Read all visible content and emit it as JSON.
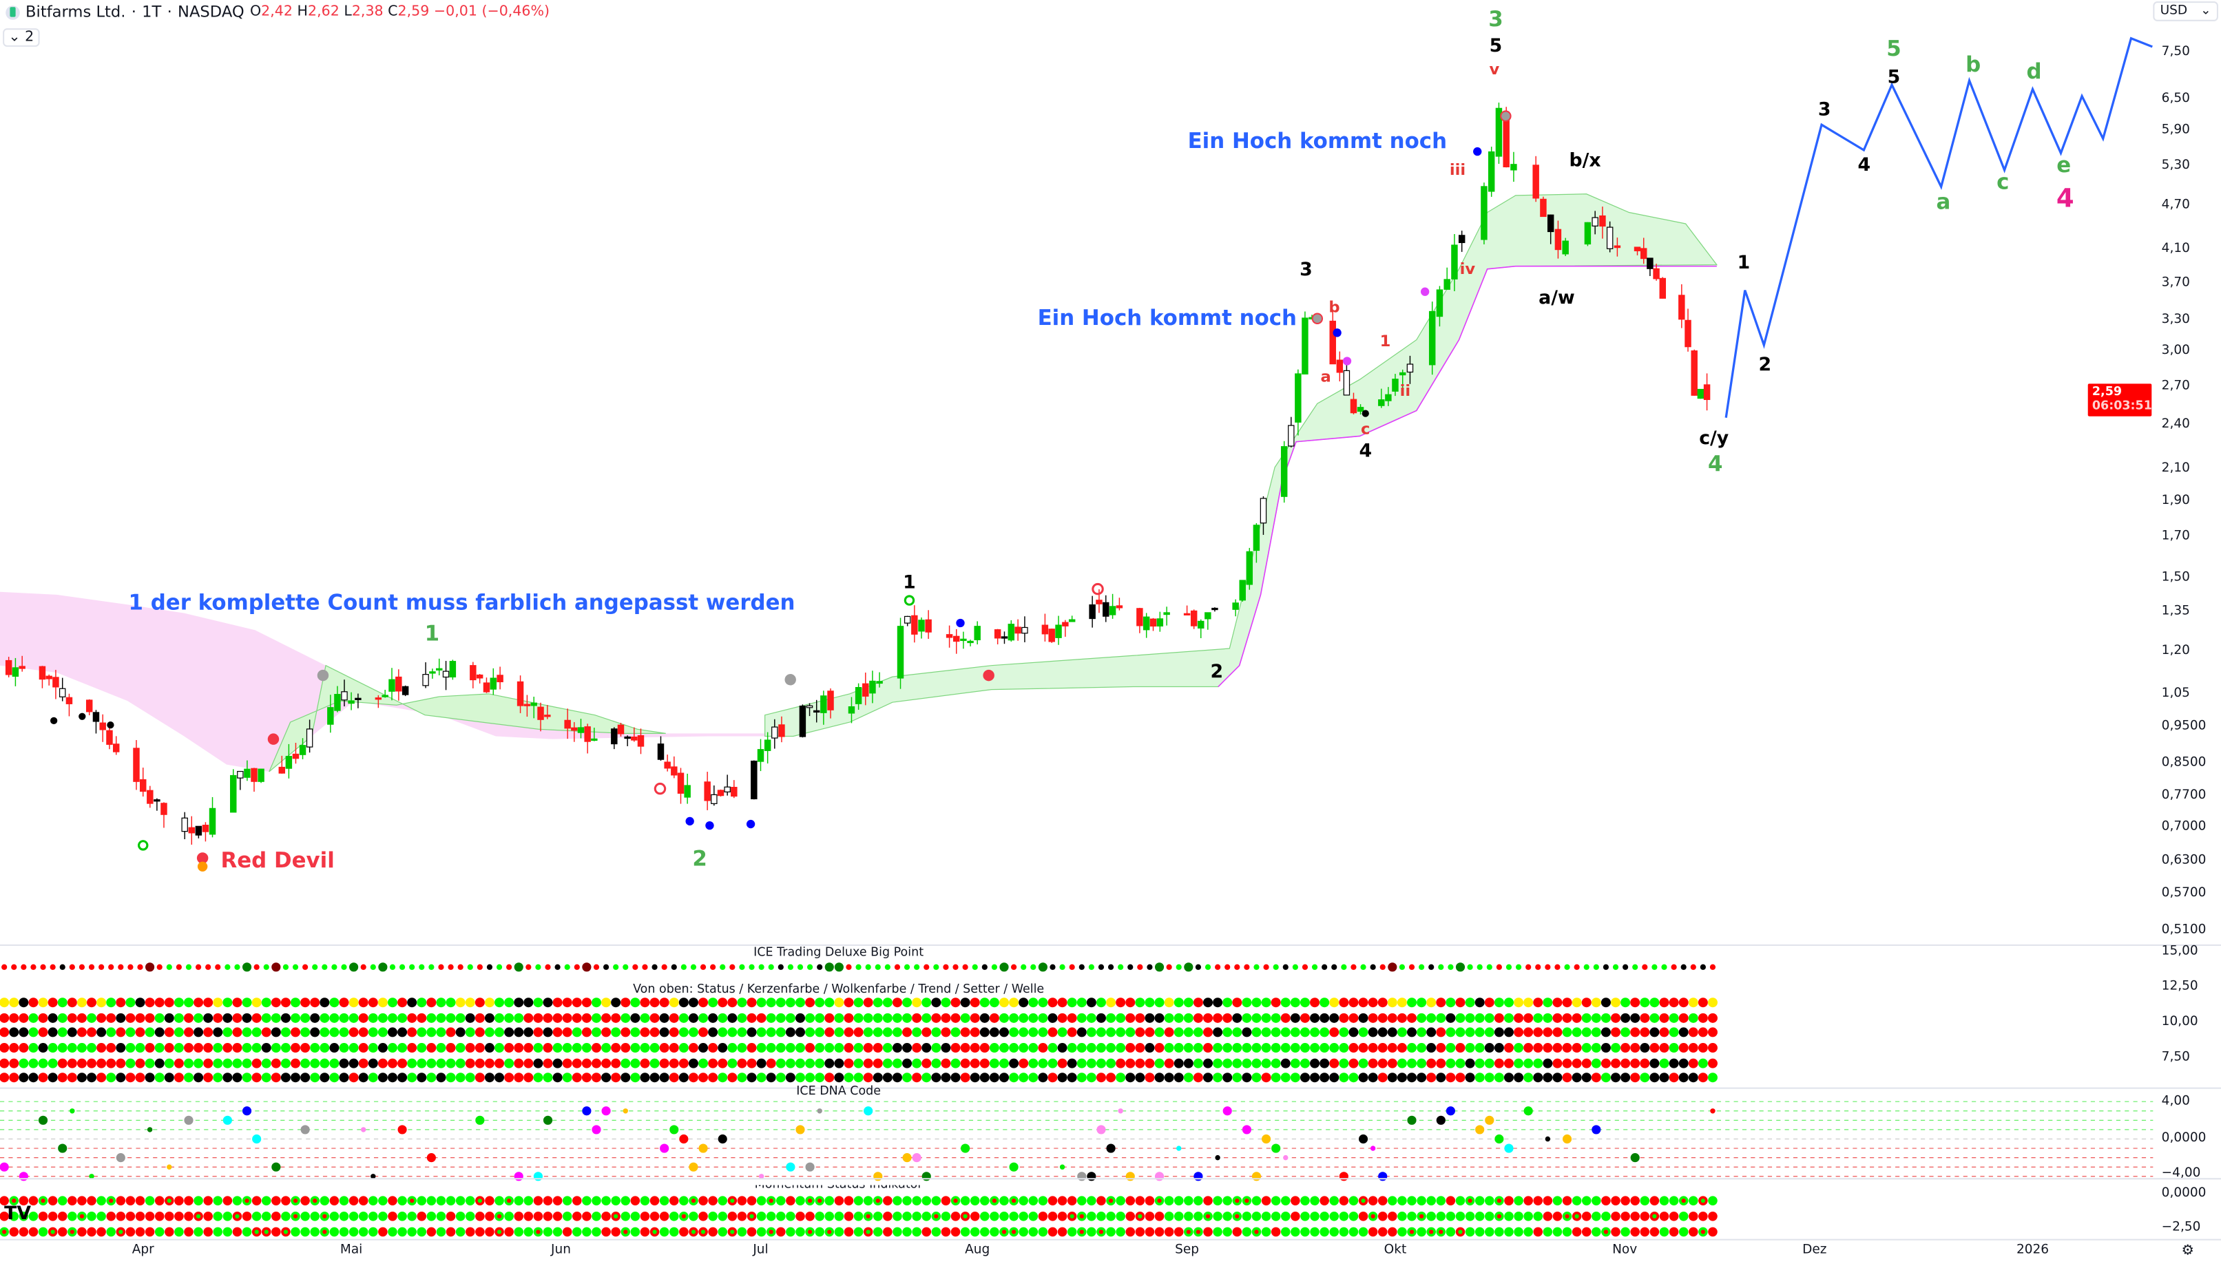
{
  "header": {
    "symbol": "Bitfarms Ltd.",
    "interval": "1T",
    "exchange": "NASDAQ",
    "sep": "·",
    "o_label": "O",
    "o": "2,42",
    "h_label": "H",
    "h": "2,62",
    "l_label": "L",
    "l": "2,38",
    "c_label": "C",
    "c": "2,59",
    "change": "−0,01 (−0,46%)",
    "collapse_count": "2"
  },
  "currency": "USD",
  "last_price": {
    "value": "2,59",
    "countdown": "06:03:51"
  },
  "price_axis": [
    "7,50",
    "6,50",
    "5,90",
    "5,30",
    "4,70",
    "4,10",
    "3,70",
    "3,30",
    "3,00",
    "2,70",
    "2,40",
    "2,10",
    "1,90",
    "1,70",
    "1,50",
    "1,35",
    "1,20",
    "1,05",
    "0,9500",
    "0,8500",
    "0,7700",
    "0,7000",
    "0,6300",
    "0,5700",
    "0,5100"
  ],
  "panes": {
    "big_point": {
      "title": "ICE Trading Deluxe Big Point"
    },
    "status": {
      "title": "Von oben: Status / Kerzenfarbe / Wolkenfarbe / Trend / Setter / Welle",
      "axis": [
        "15,00",
        "12,50",
        "10,00",
        "7,50"
      ]
    },
    "dna": {
      "title": "ICE DNA Code",
      "axis": [
        "4,00",
        "0,0000",
        "−4,00"
      ]
    },
    "momentum": {
      "title": "Momentum Status Indikator",
      "axis": [
        "0,0000",
        "−2,50"
      ]
    }
  },
  "time_axis": [
    "Apr",
    "Mai",
    "Jun",
    "Jul",
    "Aug",
    "Sep",
    "Okt",
    "Nov",
    "Dez",
    "2026"
  ],
  "annotations": {
    "note_count": "1 der komplette Count muss farblich angepasst werden",
    "note_high1": "Ein Hoch kommt noch",
    "note_high2": "Ein Hoch kommt noch",
    "red_devil": "Red Devil",
    "green": [
      "1",
      "2",
      "3",
      "4",
      "5",
      "b",
      "d",
      "a",
      "c",
      "e"
    ],
    "magenta_4": "4",
    "black": [
      "1",
      "2",
      "3",
      "4",
      "5",
      "b/x",
      "a/w",
      "c/y",
      "1",
      "2",
      "3",
      "4",
      "5"
    ],
    "red": [
      "v",
      "iii",
      "iv",
      "b",
      "a",
      "c",
      "1",
      "ii"
    ]
  },
  "colors": {
    "up": "#00c800",
    "down": "#ff1a1a",
    "projection": "#2962ff",
    "cloud_bull": "#c8f5c8",
    "cloud_bear": "#f9d0f5",
    "band": "#e040fb"
  },
  "chart_data": {
    "type": "candlestick",
    "symbol": "Bitfarms Ltd.",
    "scale": "log",
    "ylim": [
      0.51,
      7.5
    ],
    "approx_close_path": [
      [
        "2025-03-12",
        1.15
      ],
      [
        "2025-03-20",
        1.05
      ],
      [
        "2025-03-26",
        0.95
      ],
      [
        "2025-04-01",
        0.78
      ],
      [
        "2025-04-08",
        0.67
      ],
      [
        "2025-04-14",
        0.8
      ],
      [
        "2025-04-22",
        0.85
      ],
      [
        "2025-04-28",
        1.02
      ],
      [
        "2025-05-05",
        1.05
      ],
      [
        "2025-05-12",
        1.15
      ],
      [
        "2025-05-19",
        1.12
      ],
      [
        "2025-05-26",
        1.02
      ],
      [
        "2025-06-02",
        0.93
      ],
      [
        "2025-06-10",
        0.92
      ],
      [
        "2025-06-16",
        0.85
      ],
      [
        "2025-06-20",
        0.78
      ],
      [
        "2025-06-25",
        0.75
      ],
      [
        "2025-07-01",
        0.88
      ],
      [
        "2025-07-07",
        1.02
      ],
      [
        "2025-07-14",
        1.04
      ],
      [
        "2025-07-18",
        1.08
      ],
      [
        "2025-07-21",
        1.32
      ],
      [
        "2025-07-28",
        1.25
      ],
      [
        "2025-08-05",
        1.28
      ],
      [
        "2025-08-12",
        1.25
      ],
      [
        "2025-08-18",
        1.38
      ],
      [
        "2025-08-25",
        1.3
      ],
      [
        "2025-09-01",
        1.33
      ],
      [
        "2025-09-08",
        1.35
      ],
      [
        "2025-09-12",
        1.9
      ],
      [
        "2025-09-16",
        2.4
      ],
      [
        "2025-09-18",
        3.4
      ],
      [
        "2025-09-22",
        2.9
      ],
      [
        "2025-09-25",
        2.55
      ],
      [
        "2025-09-29",
        2.55
      ],
      [
        "2025-10-03",
        2.85
      ],
      [
        "2025-10-07",
        3.6
      ],
      [
        "2025-10-10",
        4.4
      ],
      [
        "2025-10-13",
        5.0
      ],
      [
        "2025-10-15",
        6.2
      ],
      [
        "2025-10-16",
        5.4
      ],
      [
        "2025-10-20",
        4.9
      ],
      [
        "2025-10-22",
        4.3
      ],
      [
        "2025-10-24",
        4.1
      ],
      [
        "2025-10-27",
        4.5
      ],
      [
        "2025-10-30",
        4.2
      ],
      [
        "2025-11-03",
        4.0
      ],
      [
        "2025-11-05",
        3.9
      ],
      [
        "2025-11-07",
        3.6
      ],
      [
        "2025-11-10",
        3.3
      ],
      [
        "2025-11-12",
        2.7
      ],
      [
        "2025-11-14",
        2.59
      ]
    ],
    "projection": [
      [
        "2025-11-17",
        2.45
      ],
      [
        "2025-11-20",
        3.62
      ],
      [
        "2025-11-23",
        3.06
      ],
      [
        "2025-12-02",
        6.01
      ],
      [
        "2025-12-08",
        5.56
      ],
      [
        "2025-12-12",
        6.79
      ],
      [
        "2025-12-19",
        4.97
      ],
      [
        "2025-12-23",
        6.88
      ],
      [
        "2025-12-28",
        5.23
      ],
      [
        "2026-01-01",
        6.7
      ],
      [
        "2026-01-05",
        5.51
      ],
      [
        "2026-01-08",
        6.56
      ],
      [
        "2026-01-11",
        5.76
      ],
      [
        "2026-01-15",
        7.83
      ],
      [
        "2026-01-18",
        7.63
      ]
    ]
  }
}
